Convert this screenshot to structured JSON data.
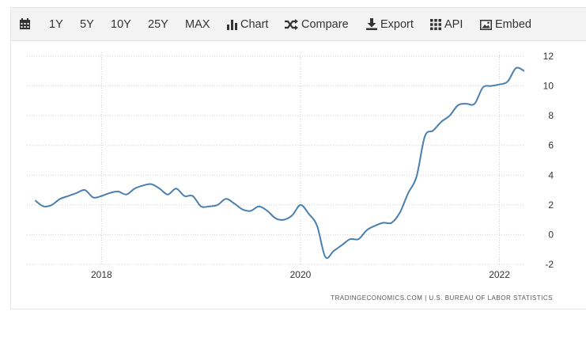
{
  "toolbar": {
    "items": [
      {
        "id": "calendar",
        "label": "",
        "icon": "calendar-icon"
      },
      {
        "id": "1y",
        "label": "1Y"
      },
      {
        "id": "5y",
        "label": "5Y"
      },
      {
        "id": "10y",
        "label": "10Y"
      },
      {
        "id": "25y",
        "label": "25Y"
      },
      {
        "id": "max",
        "label": "MAX"
      },
      {
        "id": "chart",
        "label": "Chart",
        "icon": "bar-chart-icon"
      },
      {
        "id": "compare",
        "label": "Compare",
        "icon": "shuffle-icon"
      },
      {
        "id": "export",
        "label": "Export",
        "icon": "download-icon"
      },
      {
        "id": "api",
        "label": "API",
        "icon": "grid-icon"
      },
      {
        "id": "embed",
        "label": "Embed",
        "icon": "image-icon"
      }
    ]
  },
  "chart_data": {
    "type": "line",
    "title": "",
    "xlabel": "",
    "ylabel": "",
    "ylim": [
      -2,
      12
    ],
    "xlim": [
      "2017-04",
      "2022-04"
    ],
    "y_ticks": [
      -2,
      0,
      2,
      4,
      6,
      8,
      10,
      12
    ],
    "x_ticks": [
      {
        "date": "2018-01",
        "label": "2018"
      },
      {
        "date": "2020-01",
        "label": "2020"
      },
      {
        "date": "2022-01",
        "label": "2022"
      }
    ],
    "grid": true,
    "y_axis_side": "right",
    "line_color": "#4a7fae",
    "source": "TRADINGECONOMICS.COM | U.S. BUREAU OF LABOR STATISTICS",
    "series": [
      {
        "points": [
          [
            "2017-05",
            2.3
          ],
          [
            "2017-06",
            1.9
          ],
          [
            "2017-07",
            2.0
          ],
          [
            "2017-08",
            2.4
          ],
          [
            "2017-09",
            2.6
          ],
          [
            "2017-10",
            2.8
          ],
          [
            "2017-11",
            3.0
          ],
          [
            "2017-12",
            2.5
          ],
          [
            "2018-01",
            2.6
          ],
          [
            "2018-02",
            2.8
          ],
          [
            "2018-03",
            2.9
          ],
          [
            "2018-04",
            2.7
          ],
          [
            "2018-05",
            3.1
          ],
          [
            "2018-06",
            3.3
          ],
          [
            "2018-07",
            3.4
          ],
          [
            "2018-08",
            3.1
          ],
          [
            "2018-09",
            2.7
          ],
          [
            "2018-10",
            3.1
          ],
          [
            "2018-11",
            2.6
          ],
          [
            "2018-12",
            2.6
          ],
          [
            "2019-01",
            1.9
          ],
          [
            "2019-02",
            1.9
          ],
          [
            "2019-03",
            2.0
          ],
          [
            "2019-04",
            2.4
          ],
          [
            "2019-05",
            2.1
          ],
          [
            "2019-06",
            1.7
          ],
          [
            "2019-07",
            1.6
          ],
          [
            "2019-08",
            1.9
          ],
          [
            "2019-09",
            1.6
          ],
          [
            "2019-10",
            1.1
          ],
          [
            "2019-11",
            1.0
          ],
          [
            "2019-12",
            1.3
          ],
          [
            "2020-01",
            2.0
          ],
          [
            "2020-02",
            1.4
          ],
          [
            "2020-03",
            0.6
          ],
          [
            "2020-04",
            -1.5
          ],
          [
            "2020-05",
            -1.1
          ],
          [
            "2020-06",
            -0.7
          ],
          [
            "2020-07",
            -0.3
          ],
          [
            "2020-08",
            -0.3
          ],
          [
            "2020-09",
            0.3
          ],
          [
            "2020-10",
            0.6
          ],
          [
            "2020-11",
            0.8
          ],
          [
            "2020-12",
            0.8
          ],
          [
            "2021-01",
            1.5
          ],
          [
            "2021-02",
            2.8
          ],
          [
            "2021-03",
            3.9
          ],
          [
            "2021-04",
            6.6
          ],
          [
            "2021-05",
            7.0
          ],
          [
            "2021-06",
            7.6
          ],
          [
            "2021-07",
            8.0
          ],
          [
            "2021-08",
            8.7
          ],
          [
            "2021-09",
            8.8
          ],
          [
            "2021-10",
            8.8
          ],
          [
            "2021-11",
            9.9
          ],
          [
            "2021-12",
            10.0
          ],
          [
            "2022-01",
            10.1
          ],
          [
            "2022-02",
            10.3
          ],
          [
            "2022-03",
            11.2
          ],
          [
            "2022-04",
            11.0
          ]
        ]
      }
    ]
  }
}
